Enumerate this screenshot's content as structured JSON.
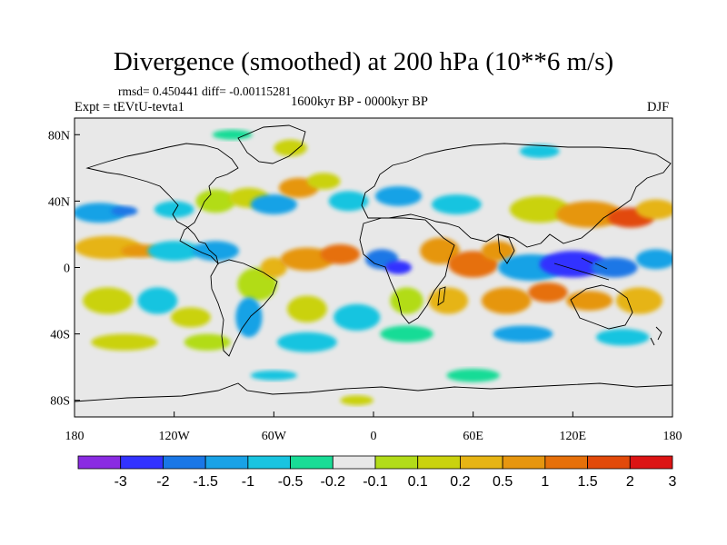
{
  "title": "Divergence (smoothed) at 200 hPa (10**6 m/s)",
  "stats_text": "rmsd= 0.450441 diff= -0.00115281",
  "experiment_text": "Expt = tEVtU-tevta1",
  "period_text": "1600kyr BP - 0000kyr BP",
  "season": "DJF",
  "axes": {
    "lat_labels": [
      {
        "label": "80N",
        "lat": 80
      },
      {
        "label": "40N",
        "lat": 40
      },
      {
        "label": "0",
        "lat": 0
      },
      {
        "label": "40S",
        "lat": -40
      },
      {
        "label": "80S",
        "lat": -80
      }
    ],
    "lon_labels": [
      {
        "label": "180",
        "lon": -180
      },
      {
        "label": "120W",
        "lon": -120
      },
      {
        "label": "60W",
        "lon": -60
      },
      {
        "label": "0",
        "lon": 0
      },
      {
        "label": "60E",
        "lon": 60
      },
      {
        "label": "120E",
        "lon": 120
      },
      {
        "label": "180",
        "lon": 180
      }
    ]
  },
  "colorbar": {
    "colors": [
      "#8a2be2",
      "#3333ff",
      "#1a77e6",
      "#19a2e6",
      "#19c4e0",
      "#19dc96",
      "#e8e8e8",
      "#b2dc19",
      "#cad20e",
      "#e6b414",
      "#e6960f",
      "#e6700a",
      "#e24a0a",
      "#dc1414"
    ],
    "labels": [
      "-3",
      "-2",
      "-1.5",
      "-1",
      "-0.5",
      "-0.2",
      "-0.1",
      "0.1",
      "0.2",
      "0.5",
      "1",
      "1.5",
      "2",
      "3"
    ]
  },
  "map_data": {
    "projection": "equirectangular",
    "lon_range": [
      -180,
      180
    ],
    "lat_range": [
      -90,
      90
    ],
    "background_value_color": "#e8e8e8",
    "anomaly_blobs": [
      {
        "lon": -165,
        "lat": 33,
        "rx": 16,
        "ry": 6,
        "color": "#19a2e6"
      },
      {
        "lon": -150,
        "lat": 34,
        "rx": 8,
        "ry": 3,
        "color": "#1a77e6"
      },
      {
        "lon": -120,
        "lat": 35,
        "rx": 12,
        "ry": 5,
        "color": "#19c4e0"
      },
      {
        "lon": -95,
        "lat": 40,
        "rx": 12,
        "ry": 7,
        "color": "#b2dc19"
      },
      {
        "lon": -75,
        "lat": 42,
        "rx": 12,
        "ry": 6,
        "color": "#cad20e"
      },
      {
        "lon": -60,
        "lat": 38,
        "rx": 14,
        "ry": 6,
        "color": "#19a2e6"
      },
      {
        "lon": -45,
        "lat": 48,
        "rx": 12,
        "ry": 6,
        "color": "#e6960f"
      },
      {
        "lon": -30,
        "lat": 52,
        "rx": 10,
        "ry": 5,
        "color": "#cad20e"
      },
      {
        "lon": -15,
        "lat": 40,
        "rx": 12,
        "ry": 6,
        "color": "#19c4e0"
      },
      {
        "lon": 15,
        "lat": 43,
        "rx": 14,
        "ry": 6,
        "color": "#19a2e6"
      },
      {
        "lon": 50,
        "lat": 38,
        "rx": 15,
        "ry": 6,
        "color": "#19c4e0"
      },
      {
        "lon": 100,
        "lat": 35,
        "rx": 18,
        "ry": 8,
        "color": "#cad20e"
      },
      {
        "lon": 130,
        "lat": 32,
        "rx": 20,
        "ry": 8,
        "color": "#e6960f"
      },
      {
        "lon": 155,
        "lat": 30,
        "rx": 14,
        "ry": 6,
        "color": "#e24a0a"
      },
      {
        "lon": 170,
        "lat": 35,
        "rx": 12,
        "ry": 6,
        "color": "#e6b414"
      },
      {
        "lon": -160,
        "lat": 12,
        "rx": 20,
        "ry": 7,
        "color": "#e6b414"
      },
      {
        "lon": -140,
        "lat": 10,
        "rx": 12,
        "ry": 4,
        "color": "#e6960f"
      },
      {
        "lon": -120,
        "lat": 10,
        "rx": 16,
        "ry": 6,
        "color": "#19c4e0"
      },
      {
        "lon": -95,
        "lat": 10,
        "rx": 14,
        "ry": 6,
        "color": "#19a2e6"
      },
      {
        "lon": -70,
        "lat": -10,
        "rx": 12,
        "ry": 10,
        "color": "#b2dc19"
      },
      {
        "lon": -60,
        "lat": 0,
        "rx": 8,
        "ry": 6,
        "color": "#e6b414"
      },
      {
        "lon": -40,
        "lat": 5,
        "rx": 16,
        "ry": 7,
        "color": "#e6960f"
      },
      {
        "lon": -20,
        "lat": 8,
        "rx": 12,
        "ry": 6,
        "color": "#e6700a"
      },
      {
        "lon": 5,
        "lat": 5,
        "rx": 10,
        "ry": 6,
        "color": "#1a77e6"
      },
      {
        "lon": 15,
        "lat": 0,
        "rx": 8,
        "ry": 4,
        "color": "#3333ff"
      },
      {
        "lon": 40,
        "lat": 10,
        "rx": 12,
        "ry": 8,
        "color": "#e6960f"
      },
      {
        "lon": 60,
        "lat": 2,
        "rx": 15,
        "ry": 8,
        "color": "#e6700a"
      },
      {
        "lon": 75,
        "lat": 10,
        "rx": 10,
        "ry": 6,
        "color": "#e6960f"
      },
      {
        "lon": 95,
        "lat": 0,
        "rx": 20,
        "ry": 8,
        "color": "#19a2e6"
      },
      {
        "lon": 120,
        "lat": 2,
        "rx": 20,
        "ry": 8,
        "color": "#3333ff"
      },
      {
        "lon": 145,
        "lat": 0,
        "rx": 14,
        "ry": 6,
        "color": "#1a77e6"
      },
      {
        "lon": 170,
        "lat": 5,
        "rx": 12,
        "ry": 6,
        "color": "#19a2e6"
      },
      {
        "lon": -160,
        "lat": -20,
        "rx": 15,
        "ry": 8,
        "color": "#cad20e"
      },
      {
        "lon": -130,
        "lat": -20,
        "rx": 12,
        "ry": 8,
        "color": "#19c4e0"
      },
      {
        "lon": -110,
        "lat": -30,
        "rx": 12,
        "ry": 6,
        "color": "#cad20e"
      },
      {
        "lon": -75,
        "lat": -30,
        "rx": 8,
        "ry": 12,
        "color": "#19a2e6"
      },
      {
        "lon": -40,
        "lat": -25,
        "rx": 12,
        "ry": 8,
        "color": "#cad20e"
      },
      {
        "lon": -10,
        "lat": -30,
        "rx": 14,
        "ry": 8,
        "color": "#19c4e0"
      },
      {
        "lon": 20,
        "lat": -20,
        "rx": 10,
        "ry": 8,
        "color": "#b2dc19"
      },
      {
        "lon": 45,
        "lat": -20,
        "rx": 12,
        "ry": 8,
        "color": "#e6b414"
      },
      {
        "lon": 80,
        "lat": -20,
        "rx": 15,
        "ry": 8,
        "color": "#e6960f"
      },
      {
        "lon": 105,
        "lat": -15,
        "rx": 12,
        "ry": 6,
        "color": "#e6700a"
      },
      {
        "lon": 130,
        "lat": -20,
        "rx": 14,
        "ry": 6,
        "color": "#e6960f"
      },
      {
        "lon": 160,
        "lat": -20,
        "rx": 14,
        "ry": 8,
        "color": "#e6b414"
      },
      {
        "lon": -150,
        "lat": -45,
        "rx": 20,
        "ry": 5,
        "color": "#cad20e"
      },
      {
        "lon": -100,
        "lat": -45,
        "rx": 14,
        "ry": 5,
        "color": "#b2dc19"
      },
      {
        "lon": -40,
        "lat": -45,
        "rx": 18,
        "ry": 6,
        "color": "#19c4e0"
      },
      {
        "lon": 20,
        "lat": -40,
        "rx": 16,
        "ry": 5,
        "color": "#19dc96"
      },
      {
        "lon": 90,
        "lat": -40,
        "rx": 18,
        "ry": 5,
        "color": "#19a2e6"
      },
      {
        "lon": 150,
        "lat": -42,
        "rx": 16,
        "ry": 5,
        "color": "#19c4e0"
      },
      {
        "lon": -60,
        "lat": -65,
        "rx": 14,
        "ry": 3,
        "color": "#19c4e0"
      },
      {
        "lon": 60,
        "lat": -65,
        "rx": 16,
        "ry": 4,
        "color": "#19dc96"
      },
      {
        "lon": -10,
        "lat": -80,
        "rx": 10,
        "ry": 3,
        "color": "#cad20e"
      },
      {
        "lon": -50,
        "lat": 72,
        "rx": 10,
        "ry": 5,
        "color": "#cad20e"
      },
      {
        "lon": -85,
        "lat": 80,
        "rx": 12,
        "ry": 3,
        "color": "#19dc96"
      },
      {
        "lon": 100,
        "lat": 70,
        "rx": 12,
        "ry": 4,
        "color": "#19c4e0"
      }
    ]
  }
}
